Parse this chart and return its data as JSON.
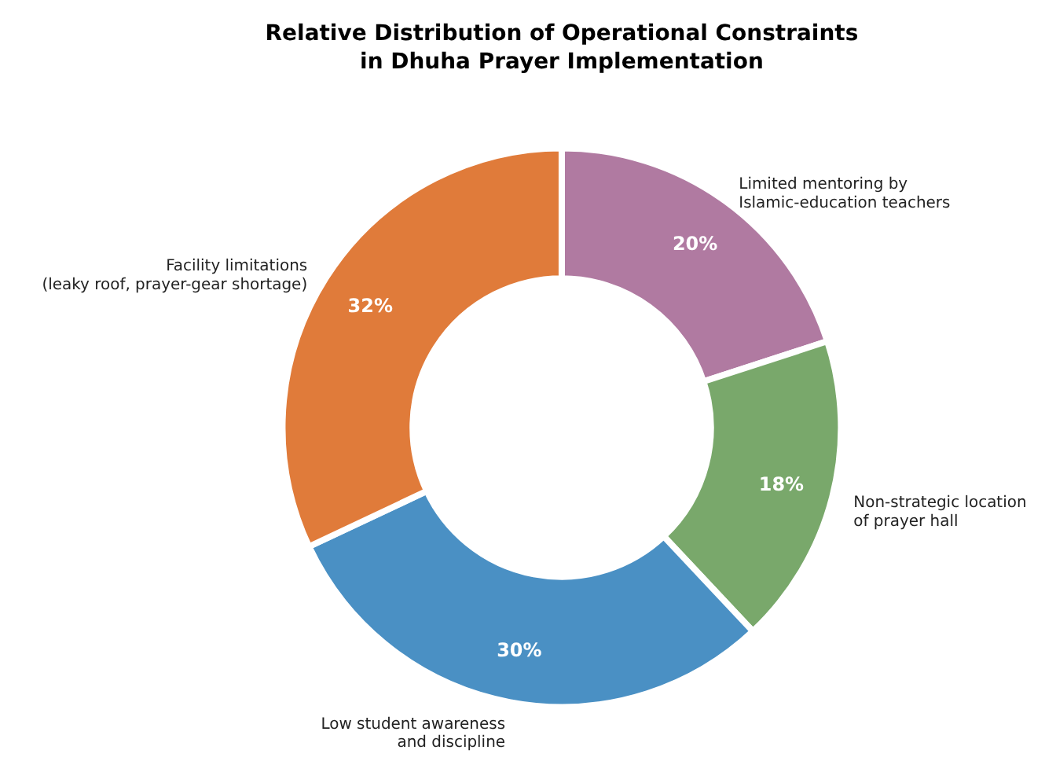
{
  "chart_data": {
    "type": "donut",
    "title": "Relative Distribution of Operational Constraints\nin Dhuha Prayer Implementation",
    "categories": [
      "Limited mentoring by\nIslamic-education teachers",
      "Non-strategic location\nof prayer hall",
      "Low student awareness\nand discipline",
      "Facility limitations\n(leaky roof, prayer-gear shortage)"
    ],
    "values": [
      20,
      18,
      30,
      32
    ],
    "colors": [
      "#b07aa1",
      "#79a86b",
      "#4a90c4",
      "#e07b3a"
    ],
    "value_labels": [
      "20%",
      "18%",
      "30%",
      "32%"
    ],
    "legend": false
  }
}
